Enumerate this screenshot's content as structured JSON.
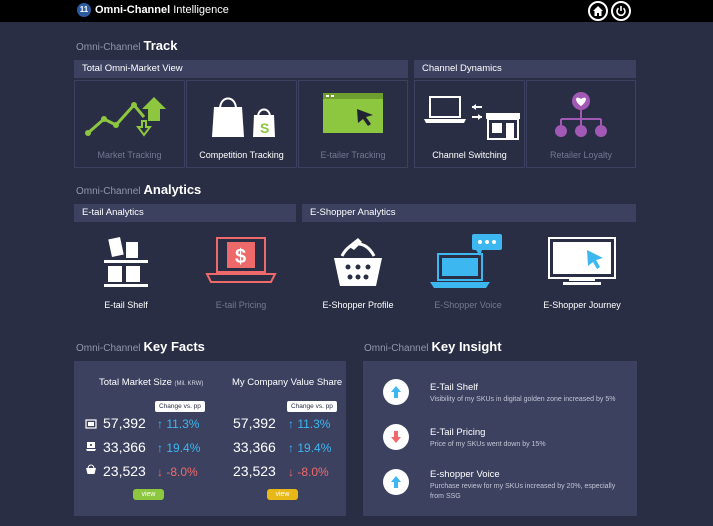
{
  "app": {
    "logo_text": "11",
    "title_bold": "Omni-Channel",
    "title_rest": " Intelligence"
  },
  "track": {
    "prefix": "Omni-Channel",
    "title": "Track",
    "groups": [
      "Total Omni-Market View",
      "Channel Dynamics"
    ],
    "tiles": [
      {
        "label": "Market Tracking",
        "active": false,
        "icon": "market-tracking-icon"
      },
      {
        "label": "Competition Tracking",
        "active": true,
        "icon": "shopping-bags-icon"
      },
      {
        "label": "E-tailer Tracking",
        "active": false,
        "icon": "browser-cursor-icon"
      },
      {
        "label": "Channel Switching",
        "active": true,
        "icon": "laptop-store-icon"
      },
      {
        "label": "Retailer Loyalty",
        "active": false,
        "icon": "heart-network-icon"
      }
    ]
  },
  "analytics": {
    "prefix": "Omni-Channel",
    "title": "Analytics",
    "groups": [
      "E-tail Analytics",
      "E-Shopper Analytics"
    ],
    "tiles": [
      {
        "label": "E-tail Shelf",
        "active": true,
        "icon": "shelf-icon"
      },
      {
        "label": "E-tail Pricing",
        "active": false,
        "icon": "laptop-dollar-icon"
      },
      {
        "label": "E-Shopper Profile",
        "active": true,
        "icon": "basket-icon"
      },
      {
        "label": "E-Shopper Voice",
        "active": false,
        "icon": "laptop-chat-icon"
      },
      {
        "label": "E-Shopper Journey",
        "active": true,
        "icon": "monitor-cursor-icon"
      }
    ]
  },
  "key_facts": {
    "prefix": "Omni-Channel",
    "title": "Key Facts",
    "columns": [
      {
        "header": "Total Market Size",
        "unit": "(Mil. KRW)",
        "badge": "Change vs. pp",
        "rows": [
          {
            "value": "57,392",
            "change": "11.3%",
            "dir": "up"
          },
          {
            "value": "33,366",
            "change": "19.4%",
            "dir": "up"
          },
          {
            "value": "23,523",
            "change": "-8.0%",
            "dir": "down"
          }
        ],
        "view_label": "view",
        "view_color": "#8dc63f"
      },
      {
        "header": "My Company Value Share",
        "unit": "",
        "badge": "Change vs. pp",
        "rows": [
          {
            "value": "57,392",
            "change": "11.3%",
            "dir": "up"
          },
          {
            "value": "33,366",
            "change": "19.4%",
            "dir": "up"
          },
          {
            "value": "23,523",
            "change": "-8.0%",
            "dir": "down"
          }
        ],
        "view_label": "view",
        "view_color": "#e8b819"
      }
    ],
    "row_icons": [
      "store-window-icon",
      "laptop-small-icon",
      "basket-small-icon"
    ]
  },
  "key_insight": {
    "prefix": "Omni-Channel",
    "title": "Key Insight",
    "items": [
      {
        "title": "E-Tail Shelf",
        "desc": "Visibility of my SKUs in digital golden zone increased by 5%",
        "dir": "up"
      },
      {
        "title": "E-Tail Pricing",
        "desc": "Price of my SKUs went down by 15%",
        "dir": "down"
      },
      {
        "title": "E-shopper Voice",
        "desc": "Purchase review for my SKUs increased by 20%, especially from SSG",
        "dir": "up"
      }
    ]
  },
  "colors": {
    "bg": "#2a2e44",
    "panel": "#3c4160",
    "up": "#3db7f0",
    "down": "#ee6a6a",
    "accent_green": "#8dc63f",
    "accent_purple": "#a259b5"
  }
}
